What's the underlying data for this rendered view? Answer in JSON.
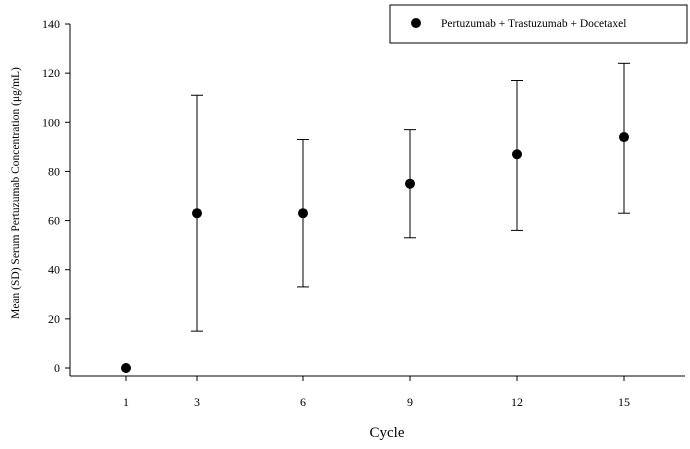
{
  "chart_data": {
    "type": "scatter",
    "title": "",
    "xlabel": "Cycle",
    "ylabel": "Mean (SD) Serum Pertuzumab Concentration  (μg/mL)",
    "categories": [
      "1",
      "3",
      "6",
      "9",
      "12",
      "15"
    ],
    "ylim": [
      0,
      140
    ],
    "yticks": [
      "0",
      "20",
      "40",
      "60",
      "80",
      "100",
      "120",
      "140"
    ],
    "grid": false,
    "legend_position": "top-right",
    "series": [
      {
        "name": "Pertuzumab + Trastuzumab + Docetaxel",
        "color": "#000000",
        "marker": "filled-circle",
        "points": [
          {
            "x": "1",
            "mean": 0,
            "sd_low": 0,
            "sd_high": 0
          },
          {
            "x": "3",
            "mean": 63,
            "sd_low": 15,
            "sd_high": 111
          },
          {
            "x": "6",
            "mean": 63,
            "sd_low": 33,
            "sd_high": 93
          },
          {
            "x": "9",
            "mean": 75,
            "sd_low": 53,
            "sd_high": 97
          },
          {
            "x": "12",
            "mean": 87,
            "sd_low": 56,
            "sd_high": 117
          },
          {
            "x": "15",
            "mean": 94,
            "sd_low": 63,
            "sd_high": 124
          }
        ]
      }
    ]
  }
}
